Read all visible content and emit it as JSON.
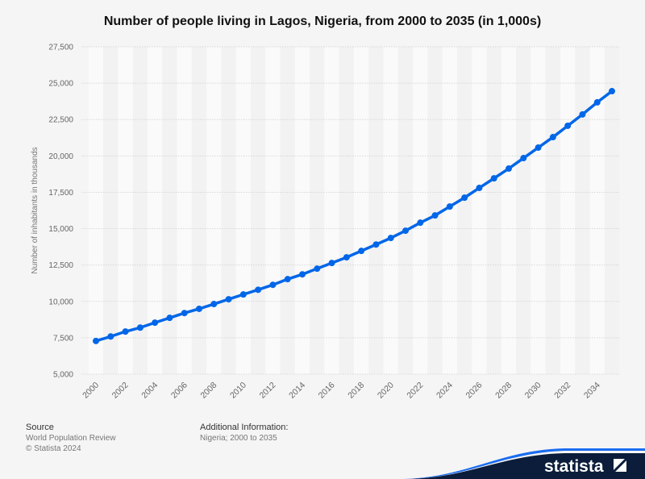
{
  "chart_data": {
    "type": "line",
    "title": "Number of people living in Lagos, Nigeria, from 2000 to 2035 (in 1,000s)",
    "ylabel": "Number of inhabitants in thousands",
    "xlabel": "",
    "ylim": [
      5000,
      27500
    ],
    "yticks": [
      "5,000",
      "7,500",
      "10,000",
      "12,500",
      "15,000",
      "17,500",
      "20,000",
      "22,500",
      "25,000",
      "27,500"
    ],
    "xticks": [
      "2000",
      "2002",
      "2004",
      "2006",
      "2008",
      "2010",
      "2012",
      "2014",
      "2016",
      "2018",
      "2020",
      "2022",
      "2024",
      "2026",
      "2028",
      "2030",
      "2032",
      "2034"
    ],
    "grid": true,
    "color": "#0066e8",
    "x": [
      2000,
      2001,
      2002,
      2003,
      2004,
      2005,
      2006,
      2007,
      2008,
      2009,
      2010,
      2011,
      2012,
      2013,
      2014,
      2015,
      2016,
      2017,
      2018,
      2019,
      2020,
      2021,
      2022,
      2023,
      2024,
      2025,
      2026,
      2027,
      2028,
      2029,
      2030,
      2031,
      2032,
      2033,
      2034,
      2035
    ],
    "values": [
      7281,
      7590,
      7930,
      8200,
      8540,
      8870,
      9200,
      9490,
      9820,
      10150,
      10480,
      10800,
      11140,
      11530,
      11860,
      12250,
      12640,
      13030,
      13470,
      13910,
      14360,
      14860,
      15410,
      15910,
      16520,
      17130,
      17800,
      18460,
      19130,
      19850,
      20570,
      21290,
      22070,
      22850,
      23680,
      24450
    ]
  },
  "footer": {
    "source_label": "Source",
    "source_lines": [
      "World Population Review",
      "© Statista 2024"
    ],
    "info_label": "Additional Information:",
    "info_text": "Nigeria; 2000 to 2035",
    "logo_text": "statista"
  }
}
